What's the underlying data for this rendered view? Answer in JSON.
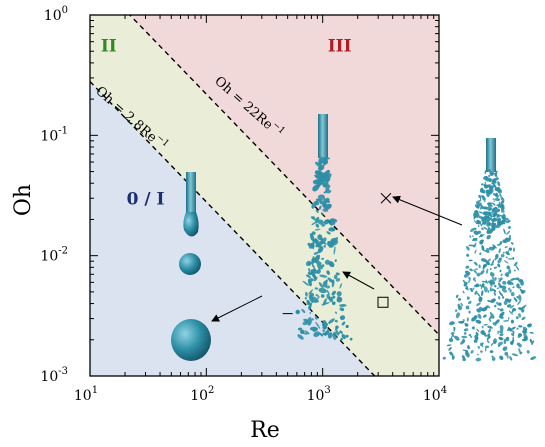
{
  "chart_data": {
    "type": "regime-map",
    "xlabel": "Re",
    "ylabel": "Oh",
    "xscale": "log",
    "yscale": "log",
    "xlim": [
      10,
      10000
    ],
    "ylim": [
      0.001,
      1
    ],
    "x_tick_labels": [
      {
        "base": "10",
        "exp": "1",
        "value": 10
      },
      {
        "base": "10",
        "exp": "2",
        "value": 100
      },
      {
        "base": "10",
        "exp": "3",
        "value": 1000
      },
      {
        "base": "10",
        "exp": "4",
        "value": 10000
      }
    ],
    "y_tick_labels": [
      {
        "base": "10",
        "exp": "-3",
        "value": 0.001
      },
      {
        "base": "10",
        "exp": "-2",
        "value": 0.01
      },
      {
        "base": "10",
        "exp": "-1",
        "value": 0.1
      },
      {
        "base": "10",
        "exp": "0",
        "value": 1
      }
    ],
    "boundaries": [
      {
        "label": "Oh = 2.8Re",
        "label_exp": "−1",
        "coefficient": 2.8,
        "exponent": -1,
        "style": "dashed"
      },
      {
        "label": "Oh = 22Re",
        "label_exp": "−1",
        "coefficient": 22,
        "exponent": -1,
        "style": "dashed"
      }
    ],
    "regions": [
      {
        "label": "0 / I",
        "color": "#dae3ef",
        "text_color": "#1c2f72",
        "label_at": [
          30,
          0.03
        ]
      },
      {
        "label": "II",
        "color": "#eaeed8",
        "text_color": "#2e8b1f",
        "label_at": [
          14.5,
          0.56
        ]
      },
      {
        "label": "III",
        "color": "#f1d8d9",
        "text_color": "#b01d24",
        "label_at": [
          1400,
          0.56
        ]
      }
    ],
    "points": [
      {
        "marker": "dash",
        "x": 500,
        "y": 0.0033
      },
      {
        "marker": "square",
        "x": 3300,
        "y": 0.0041
      },
      {
        "marker": "cross",
        "x": 3500,
        "y": 0.03
      }
    ],
    "illustration_color": "#2d8fa6"
  }
}
